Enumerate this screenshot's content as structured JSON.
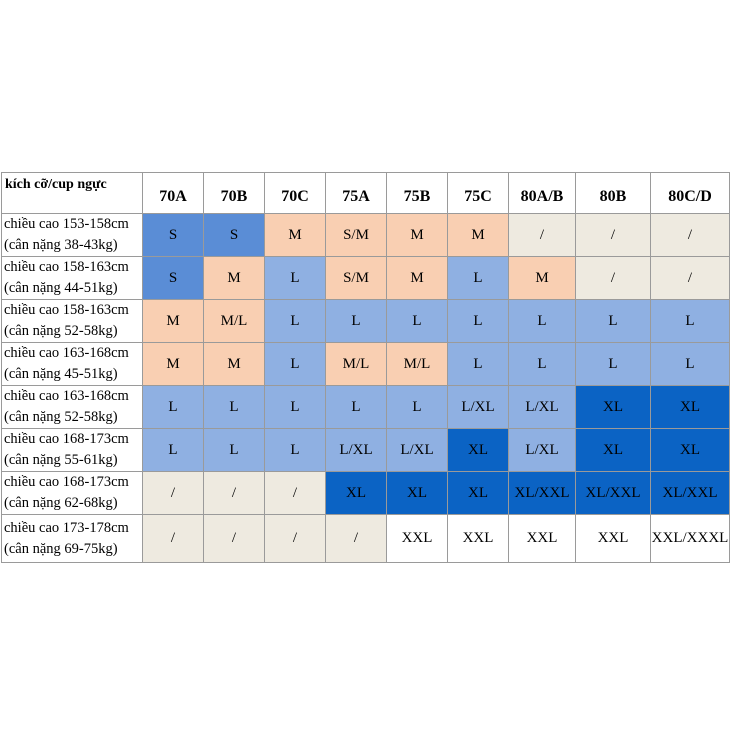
{
  "table": {
    "corner": "kích cỡ/cup ngực",
    "columns": [
      "70A",
      "70B",
      "70C",
      "75A",
      "75B",
      "75C",
      "80A/B",
      "80B",
      "80C/D"
    ],
    "rows": [
      {
        "height": "chiều cao 153-158cm",
        "weight": "(cân nặng 38-43kg)",
        "cells": [
          "S",
          "S",
          "M",
          "S/M",
          "M",
          "M",
          "/",
          "/",
          "/"
        ]
      },
      {
        "height": "chiều cao 158-163cm",
        "weight": "(cân nặng 44-51kg)",
        "cells": [
          "S",
          "M",
          "L",
          "S/M",
          "M",
          "L",
          "M",
          "/",
          "/"
        ]
      },
      {
        "height": "chiều cao 158-163cm",
        "weight": "(cân nặng 52-58kg)",
        "cells": [
          "M",
          "M/L",
          "L",
          "L",
          "L",
          "L",
          "L",
          "L",
          "L"
        ]
      },
      {
        "height": "chiều cao 163-168cm",
        "weight": "(cân nặng 45-51kg)",
        "cells": [
          "M",
          "M",
          "L",
          "M/L",
          "M/L",
          "L",
          "L",
          "L",
          "L"
        ]
      },
      {
        "height": "chiều cao 163-168cm",
        "weight": "(cân nặng 52-58kg)",
        "cells": [
          "L",
          "L",
          "L",
          "L",
          "L",
          "L/XL",
          "L/XL",
          "XL",
          "XL"
        ]
      },
      {
        "height": "chiều cao 168-173cm",
        "weight": "(cân nặng 55-61kg)",
        "cells": [
          "L",
          "L",
          "L",
          "L/XL",
          "L/XL",
          "XL",
          "L/XL",
          "XL",
          "XL"
        ]
      },
      {
        "height": "chiều cao 168-173cm",
        "weight": "(cân nặng 62-68kg)",
        "cells": [
          "/",
          "/",
          "/",
          "XL",
          "XL",
          "XL",
          "XL/XXL",
          "XL/XXL",
          "XL/XXL"
        ]
      },
      {
        "height": "chiều cao 173-178cm",
        "weight": "(cân nặng 69-75kg)",
        "cells": [
          "/",
          "/",
          "/",
          "/",
          "XXL",
          "XXL",
          "XXL",
          "XXL",
          "XXL/XXXL"
        ]
      }
    ]
  },
  "colors": {
    "peach": "#f9cfb2",
    "light_blue": "#8fb0e2",
    "medium_blue": "#5a8dd6",
    "dark_blue": "#0b63c4",
    "beige": "#eeeae0",
    "white": "#ffffff"
  }
}
